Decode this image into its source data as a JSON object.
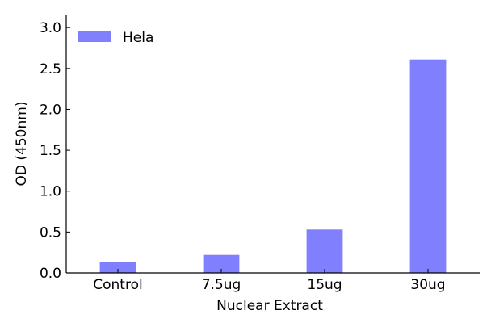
{
  "chart_data": {
    "type": "bar",
    "xlabel": "Nuclear Extract",
    "ylabel": "OD (450nm)",
    "categories": [
      "Control",
      "7.5ug",
      "15ug",
      "30ug"
    ],
    "series": [
      {
        "name": "Hela",
        "values": [
          0.13,
          0.22,
          0.53,
          2.61
        ],
        "color": "#8080ff"
      }
    ],
    "ylim": [
      0,
      3.15
    ],
    "yticks": [
      0.0,
      0.5,
      1.0,
      1.5,
      2.0,
      2.5,
      3.0
    ],
    "ytick_labels": [
      "0.0",
      "0.5",
      "1.0",
      "1.5",
      "2.0",
      "2.5",
      "3.0"
    ],
    "grid": false,
    "legend": "top-left"
  }
}
